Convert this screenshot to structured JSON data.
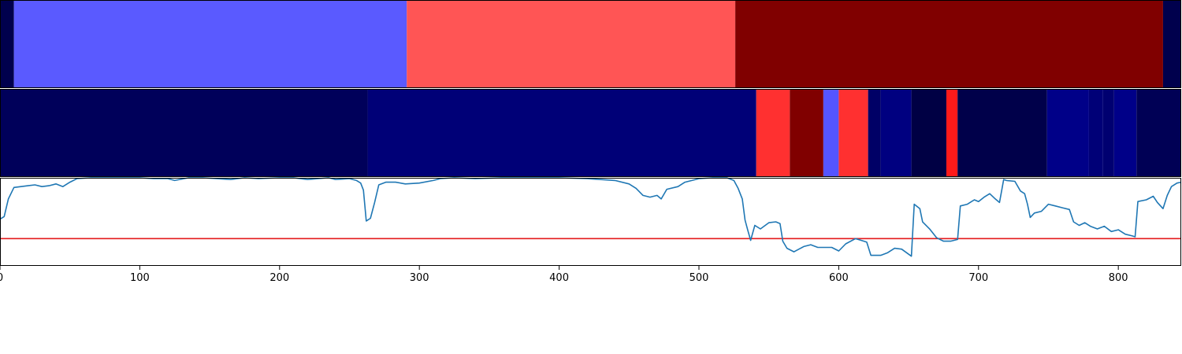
{
  "chart_data": {
    "type": "line",
    "xlim": [
      0,
      845
    ],
    "ylim": [
      0,
      1
    ],
    "x_ticks": [
      {
        "value": 0,
        "label": "0"
      },
      {
        "value": 100,
        "label": "100"
      },
      {
        "value": 200,
        "label": "200"
      },
      {
        "value": 300,
        "label": "300"
      },
      {
        "value": 400,
        "label": "400"
      },
      {
        "value": 500,
        "label": "500"
      },
      {
        "value": 600,
        "label": "600"
      },
      {
        "value": 700,
        "label": "700"
      },
      {
        "value": 800,
        "label": "800"
      }
    ],
    "segment_tracks": [
      {
        "name": "",
        "segments": [
          {
            "start": 0,
            "end": 10,
            "color": "#00004d"
          },
          {
            "start": 10,
            "end": 291,
            "color": "#5a5aff"
          },
          {
            "start": 291,
            "end": 526,
            "color": "#ff5555"
          },
          {
            "start": 526,
            "end": 832,
            "color": "#800000"
          },
          {
            "start": 832,
            "end": 845,
            "color": "#00004d"
          }
        ]
      },
      {
        "name": "",
        "segments": [
          {
            "start": 0,
            "end": 263,
            "color": "#00005a"
          },
          {
            "start": 263,
            "end": 541,
            "color": "#000077"
          },
          {
            "start": 541,
            "end": 565,
            "color": "#ff3030"
          },
          {
            "start": 565,
            "end": 589,
            "color": "#800000"
          },
          {
            "start": 589,
            "end": 600,
            "color": "#5555ff"
          },
          {
            "start": 600,
            "end": 621,
            "color": "#ff3030"
          },
          {
            "start": 621,
            "end": 630,
            "color": "#000066"
          },
          {
            "start": 630,
            "end": 652,
            "color": "#000080"
          },
          {
            "start": 652,
            "end": 677,
            "color": "#000044"
          },
          {
            "start": 677,
            "end": 685,
            "color": "#ff1a1a"
          },
          {
            "start": 685,
            "end": 749,
            "color": "#00004a"
          },
          {
            "start": 749,
            "end": 779,
            "color": "#000088"
          },
          {
            "start": 779,
            "end": 789,
            "color": "#000077"
          },
          {
            "start": 789,
            "end": 797,
            "color": "#000070"
          },
          {
            "start": 797,
            "end": 813,
            "color": "#000088"
          },
          {
            "start": 813,
            "end": 845,
            "color": "#000055"
          }
        ]
      }
    ],
    "threshold": {
      "y": 0.31,
      "color": "#e41a1c"
    },
    "series": [
      {
        "color": "#1f77b4",
        "points": [
          [
            0,
            0.53
          ],
          [
            3,
            0.56
          ],
          [
            6,
            0.76
          ],
          [
            10,
            0.89
          ],
          [
            15,
            0.9
          ],
          [
            20,
            0.91
          ],
          [
            25,
            0.92
          ],
          [
            30,
            0.9
          ],
          [
            35,
            0.91
          ],
          [
            40,
            0.93
          ],
          [
            45,
            0.9
          ],
          [
            50,
            0.95
          ],
          [
            55,
            0.99
          ],
          [
            65,
            1.0
          ],
          [
            80,
            1.0
          ],
          [
            100,
            1.0
          ],
          [
            110,
            0.99
          ],
          [
            120,
            0.99
          ],
          [
            125,
            0.97
          ],
          [
            135,
            1.0
          ],
          [
            145,
            1.0
          ],
          [
            155,
            0.99
          ],
          [
            165,
            0.98
          ],
          [
            175,
            1.0
          ],
          [
            185,
            0.99
          ],
          [
            200,
            1.0
          ],
          [
            210,
            1.0
          ],
          [
            220,
            0.98
          ],
          [
            235,
            1.0
          ],
          [
            240,
            0.98
          ],
          [
            250,
            0.99
          ],
          [
            255,
            0.97
          ],
          [
            258,
            0.94
          ],
          [
            260,
            0.86
          ],
          [
            262,
            0.51
          ],
          [
            265,
            0.54
          ],
          [
            268,
            0.72
          ],
          [
            271,
            0.92
          ],
          [
            276,
            0.95
          ],
          [
            283,
            0.95
          ],
          [
            290,
            0.93
          ],
          [
            300,
            0.94
          ],
          [
            310,
            0.97
          ],
          [
            315,
            0.99
          ],
          [
            325,
            1.0
          ],
          [
            340,
            0.99
          ],
          [
            360,
            1.0
          ],
          [
            380,
            1.0
          ],
          [
            400,
            1.0
          ],
          [
            420,
            0.99
          ],
          [
            440,
            0.97
          ],
          [
            450,
            0.93
          ],
          [
            455,
            0.88
          ],
          [
            460,
            0.8
          ],
          [
            465,
            0.78
          ],
          [
            470,
            0.8
          ],
          [
            473,
            0.76
          ],
          [
            477,
            0.87
          ],
          [
            485,
            0.9
          ],
          [
            490,
            0.95
          ],
          [
            500,
            0.99
          ],
          [
            510,
            1.0
          ],
          [
            520,
            1.0
          ],
          [
            525,
            0.97
          ],
          [
            528,
            0.88
          ],
          [
            531,
            0.76
          ],
          [
            533,
            0.52
          ],
          [
            535,
            0.4
          ],
          [
            537,
            0.29
          ],
          [
            540,
            0.46
          ],
          [
            544,
            0.42
          ],
          [
            550,
            0.49
          ],
          [
            555,
            0.5
          ],
          [
            558,
            0.48
          ],
          [
            560,
            0.28
          ],
          [
            563,
            0.2
          ],
          [
            568,
            0.16
          ],
          [
            575,
            0.22
          ],
          [
            580,
            0.24
          ],
          [
            585,
            0.21
          ],
          [
            590,
            0.21
          ],
          [
            595,
            0.21
          ],
          [
            600,
            0.17
          ],
          [
            605,
            0.25
          ],
          [
            612,
            0.31
          ],
          [
            616,
            0.29
          ],
          [
            620,
            0.27
          ],
          [
            623,
            0.12
          ],
          [
            630,
            0.12
          ],
          [
            635,
            0.15
          ],
          [
            640,
            0.2
          ],
          [
            645,
            0.19
          ],
          [
            652,
            0.11
          ],
          [
            654,
            0.7
          ],
          [
            658,
            0.65
          ],
          [
            660,
            0.5
          ],
          [
            665,
            0.42
          ],
          [
            670,
            0.32
          ],
          [
            675,
            0.28
          ],
          [
            680,
            0.28
          ],
          [
            685,
            0.3
          ],
          [
            687,
            0.68
          ],
          [
            692,
            0.7
          ],
          [
            697,
            0.75
          ],
          [
            700,
            0.73
          ],
          [
            704,
            0.78
          ],
          [
            708,
            0.82
          ],
          [
            712,
            0.76
          ],
          [
            715,
            0.72
          ],
          [
            718,
            0.98
          ],
          [
            720,
            0.97
          ],
          [
            726,
            0.96
          ],
          [
            730,
            0.85
          ],
          [
            733,
            0.82
          ],
          [
            735,
            0.7
          ],
          [
            737,
            0.55
          ],
          [
            740,
            0.6
          ],
          [
            745,
            0.62
          ],
          [
            750,
            0.7
          ],
          [
            755,
            0.68
          ],
          [
            760,
            0.66
          ],
          [
            765,
            0.64
          ],
          [
            768,
            0.5
          ],
          [
            772,
            0.46
          ],
          [
            776,
            0.49
          ],
          [
            780,
            0.45
          ],
          [
            785,
            0.42
          ],
          [
            790,
            0.45
          ],
          [
            795,
            0.39
          ],
          [
            800,
            0.41
          ],
          [
            805,
            0.36
          ],
          [
            810,
            0.34
          ],
          [
            812,
            0.33
          ],
          [
            814,
            0.73
          ],
          [
            820,
            0.75
          ],
          [
            825,
            0.79
          ],
          [
            828,
            0.72
          ],
          [
            832,
            0.65
          ],
          [
            835,
            0.8
          ],
          [
            838,
            0.9
          ],
          [
            842,
            0.94
          ],
          [
            845,
            0.95
          ]
        ]
      }
    ]
  }
}
